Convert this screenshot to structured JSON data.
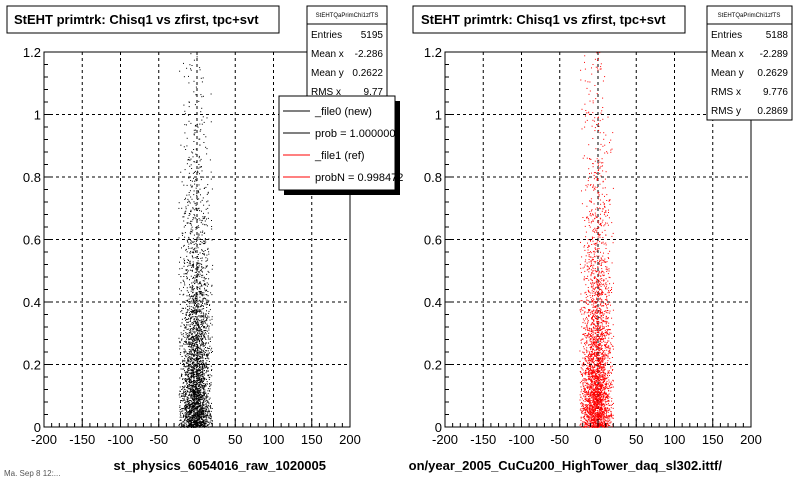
{
  "footer_text": "Ma. Sep 8 12:...",
  "chart_data": [
    {
      "type": "scatter",
      "title": "StEHT primtrk: Chisq1 vs zfirst, tpc+svt",
      "xlabel": "st_physics_6054016_raw_1020005",
      "ylabel": "",
      "xlim": [
        -200,
        200
      ],
      "ylim": [
        0,
        1.2
      ],
      "xticks": [
        "-200",
        "-150",
        "-100",
        "-50",
        "0",
        "50",
        "100",
        "150",
        "200"
      ],
      "yticks": [
        "0",
        "0.2",
        "0.4",
        "0.6",
        "0.8",
        "1",
        "1.2"
      ],
      "grid": true,
      "marker_color": "#000000",
      "stats": {
        "name": "StEHTQaPrimChi1zfTS",
        "rows": [
          {
            "label": "Entries",
            "value": "5195"
          },
          {
            "label": "Mean x",
            "value": "-2.286"
          },
          {
            "label": "Mean y",
            "value": "0.2622"
          },
          {
            "label": "RMS x",
            "value": "9.77"
          }
        ]
      },
      "legend": {
        "placement": "top-right",
        "entries": [
          {
            "label": "_file0 (new)",
            "color": "#000000"
          },
          {
            "label": "prob = 1.000000",
            "color": "#000000"
          },
          {
            "label": "_file1 (ref)",
            "color": "#ff0000"
          },
          {
            "label": "probN = 0.998472",
            "color": "#ff0000"
          }
        ]
      },
      "distribution": {
        "entries": 5195,
        "x_center": -2.286,
        "x_rms": 9.77,
        "x_core_halfwidth": 22,
        "y_mean": 0.2622,
        "y_rms": 0.2869
      }
    },
    {
      "type": "scatter",
      "title": "StEHT primtrk: Chisq1 vs zfirst, tpc+svt",
      "xlabel": "on/year_2005_CuCu200_HighTower_daq_sl302.ittf/",
      "ylabel": "",
      "xlim": [
        -200,
        200
      ],
      "ylim": [
        0,
        1.2
      ],
      "xticks": [
        "-200",
        "-150",
        "-100",
        "-50",
        "0",
        "50",
        "100",
        "150",
        "200"
      ],
      "yticks": [
        "0",
        "0.2",
        "0.4",
        "0.6",
        "0.8",
        "1",
        "1.2"
      ],
      "grid": true,
      "marker_color": "#ff0000",
      "stats": {
        "name": "StEHTQaPrimChi1zfTS",
        "rows": [
          {
            "label": "Entries",
            "value": "5188"
          },
          {
            "label": "Mean x",
            "value": "-2.289"
          },
          {
            "label": "Mean y",
            "value": "0.2629"
          },
          {
            "label": "RMS x",
            "value": "9.776"
          },
          {
            "label": "RMS y",
            "value": "0.2869"
          }
        ]
      },
      "distribution": {
        "entries": 5188,
        "x_center": -2.289,
        "x_rms": 9.776,
        "x_core_halfwidth": 22,
        "y_mean": 0.2629,
        "y_rms": 0.2869
      }
    }
  ]
}
